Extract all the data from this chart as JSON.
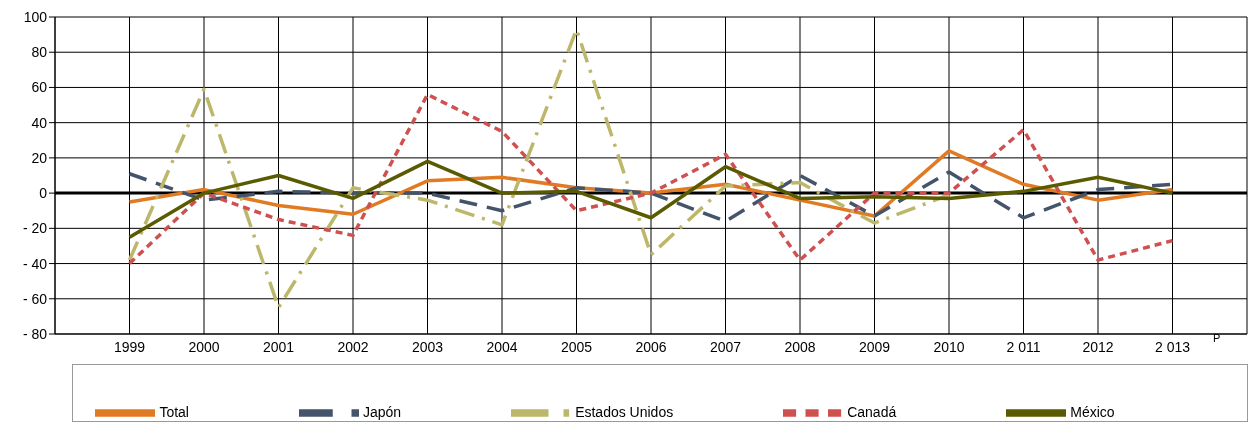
{
  "chart_data": {
    "type": "line",
    "categories": [
      "1999",
      "2000",
      "2001",
      "2002",
      "2003",
      "2004",
      "2005",
      "2006",
      "2007",
      "2008",
      "2009",
      "2010",
      "2 011",
      "2012",
      "2 013"
    ],
    "series": [
      {
        "name": "Total",
        "color": "#e07b24",
        "line_style": "solid",
        "values": [
          -5,
          2,
          -7,
          -12,
          7,
          9,
          3,
          0,
          5,
          -4,
          -13,
          24,
          5,
          -4,
          2
        ]
      },
      {
        "name": "Japón",
        "color": "#44546a",
        "line_style": "dashed",
        "values": [
          11,
          -4,
          1,
          0,
          0,
          -10,
          3,
          0,
          -16,
          10,
          -13,
          12,
          -14,
          2,
          5
        ]
      },
      {
        "name": "Estados Unidos",
        "color": "#bdb76b",
        "line_style": "dashdot",
        "values": [
          -38,
          59,
          -65,
          3,
          -4,
          -18,
          93,
          -35,
          4,
          6,
          -17,
          -1,
          null,
          null,
          null
        ]
      },
      {
        "name": "Canadá",
        "color": "#d05050",
        "line_style": "dotted",
        "values": [
          -40,
          0,
          -15,
          -24,
          56,
          35,
          -10,
          0,
          22,
          -38,
          0,
          0,
          36,
          -38,
          -27
        ]
      },
      {
        "name": "México",
        "color": "#5a5a00",
        "line_style": "solid",
        "values": [
          -25,
          0,
          10,
          -3,
          18,
          0,
          1,
          -14,
          15,
          -3,
          -2,
          -3,
          1,
          9,
          0
        ]
      }
    ],
    "ylim": [
      -80,
      100
    ],
    "yticks": [
      {
        "value": -80,
        "label": "- 80"
      },
      {
        "value": -60,
        "label": "- 60"
      },
      {
        "value": -40,
        "label": "- 40"
      },
      {
        "value": -20,
        "label": "- 20"
      },
      0,
      20,
      40,
      60,
      80,
      100
    ],
    "ref_lines": [
      {
        "axis": "y",
        "value": 0,
        "color": "#000000"
      }
    ],
    "grid": true,
    "legend": "bottom",
    "marker": "none",
    "annotations": [
      "P"
    ]
  }
}
